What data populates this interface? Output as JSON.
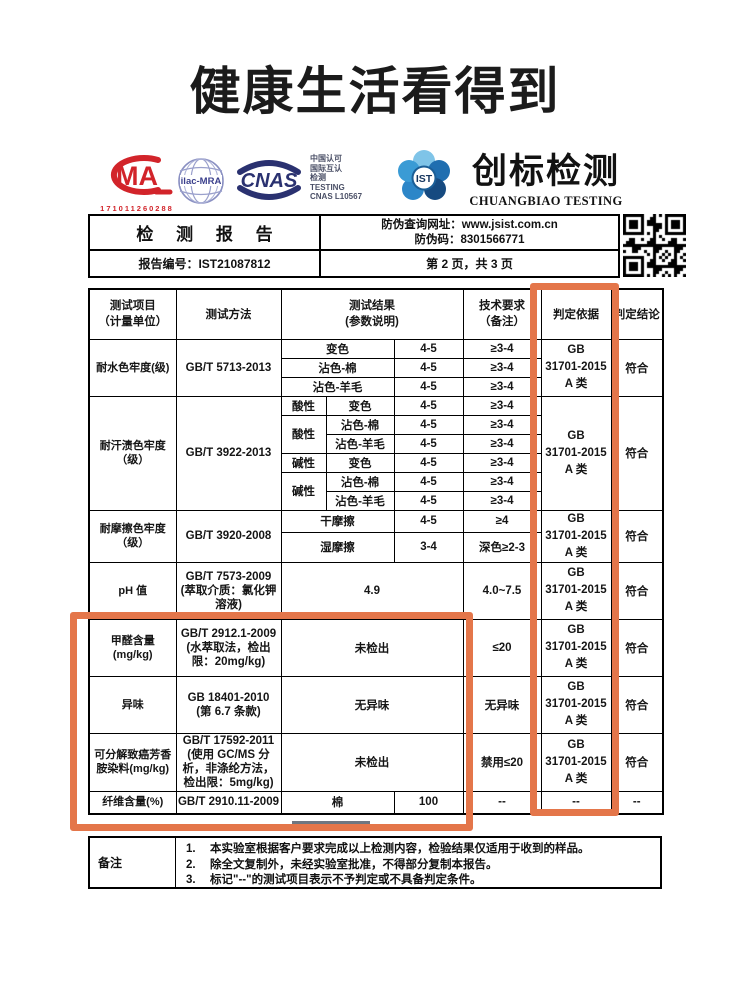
{
  "page_title": "健康生活看得到",
  "highlight_color": "#E4764A",
  "certifications": {
    "cma": {
      "letters": "MA",
      "number": "171011260288",
      "color": "#D2242A"
    },
    "ilac": {
      "label": "ilac-MRA",
      "color": "#5A62A8"
    },
    "cnas": {
      "label": "CNAS",
      "color": "#2A3170"
    },
    "accreditation_lines": [
      "中国认可",
      "国际互认",
      "检测",
      "TESTING",
      "CNAS L10567"
    ],
    "ist": {
      "label": "IST",
      "color": "#1F6EB0"
    },
    "lab_name_cn": "创标检测",
    "lab_name_en": "CHUANGBIAO TESTING"
  },
  "report_header": {
    "title": "检 测 报 告",
    "report_no": "报告编号：IST21087812",
    "anti_fake_url": "防伪查询网址：www.jsist.com.cn",
    "anti_fake_code": "防伪码：8301566771",
    "page_info": "第 2 页，共 3 页"
  },
  "results_table": {
    "headers": {
      "col1a": "测试项目",
      "col1b": "（计量单位）",
      "col2": "测试方法",
      "col3a": "测试结果",
      "col3b": "(参数说明)",
      "col4a": "技术要求",
      "col4b": "（备注）",
      "col5": "判定依据",
      "col6": "判定结论"
    },
    "basis_lines": [
      "GB",
      "31701-2015",
      "A 类"
    ],
    "rows": {
      "water": {
        "item": "耐水色牢度(级)",
        "method": "GB/T 5713-2013",
        "verdict": "符合",
        "sub": [
          {
            "label": "变色",
            "value": "4-5",
            "req": "≥3-4"
          },
          {
            "label": "沾色-棉",
            "value": "4-5",
            "req": "≥3-4"
          },
          {
            "label": "沾色-羊毛",
            "value": "4-5",
            "req": "≥3-4"
          }
        ]
      },
      "sweat": {
        "item": "耐汗渍色牢度（级）",
        "method": "GB/T 3922-2013",
        "verdict": "符合",
        "groups": [
          "酸性",
          "酸性",
          "碱性",
          "碱性"
        ],
        "sub": [
          {
            "label": "变色",
            "value": "4-5",
            "req": "≥3-4"
          },
          {
            "label": "沾色-棉",
            "value": "4-5",
            "req": "≥3-4"
          },
          {
            "label": "沾色-羊毛",
            "value": "4-5",
            "req": "≥3-4"
          },
          {
            "label": "变色",
            "value": "4-5",
            "req": "≥3-4"
          },
          {
            "label": "沾色-棉",
            "value": "4-5",
            "req": "≥3-4"
          },
          {
            "label": "沾色-羊毛",
            "value": "4-5",
            "req": "≥3-4"
          }
        ]
      },
      "rub": {
        "item": "耐摩擦色牢度（级）",
        "method": "GB/T 3920-2008",
        "verdict": "符合",
        "sub": [
          {
            "label": "干摩擦",
            "value": "4-5",
            "req": "≥4"
          },
          {
            "label": "湿摩擦",
            "value": "3-4",
            "req": "深色≥2-3"
          }
        ]
      },
      "ph": {
        "item": "pH 值",
        "method1": "GB/T 7573-2009",
        "method2": "(萃取介质：氯化钾溶液)",
        "result": "4.9",
        "req": "4.0~7.5",
        "verdict": "符合"
      },
      "formaldehyde": {
        "item": "甲醛含量 (mg/kg)",
        "method1": "GB/T 2912.1-2009",
        "method2": "(水萃取法，检出限：20mg/kg)",
        "result": "未检出",
        "req": "≤20",
        "verdict": "符合"
      },
      "odor": {
        "item": "异味",
        "method1": "GB 18401-2010",
        "method2": "(第 6.7 条款)",
        "result": "无异味",
        "req": "无异味",
        "verdict": "符合"
      },
      "amine": {
        "item": "可分解致癌芳香胺染料(mg/kg)",
        "method1": "GB/T 17592-2011",
        "method2": "(使用 GC/MS 分析，非涤纶方法，检出限：5mg/kg)",
        "result": "未检出",
        "req": "禁用≤20",
        "verdict": "符合"
      },
      "fiber": {
        "item": "纤维含量(%)",
        "method": "GB/T 2910.11-2009",
        "label": "棉",
        "value": "100",
        "req": "--",
        "basis": "--",
        "verdict": "--"
      }
    }
  },
  "remarks": {
    "label": "备注",
    "items": [
      {
        "no": "1.",
        "text": "本实验室根据客户要求完成以上检测内容，检验结果仅适用于收到的样品。"
      },
      {
        "no": "2.",
        "text": "除全文复制外，未经实验室批准，不得部分复制本报告。"
      },
      {
        "no": "3.",
        "text": "标记\"--\"的测试项目表示不予判定或不具备判定条件。"
      }
    ]
  }
}
